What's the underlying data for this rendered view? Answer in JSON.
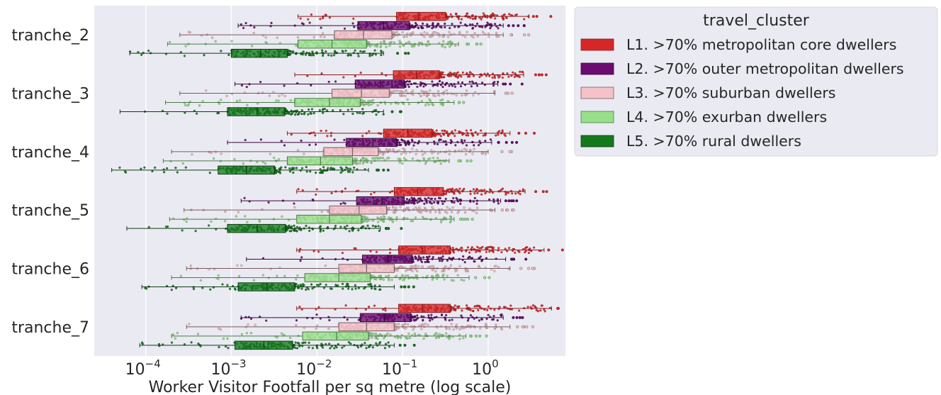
{
  "chart_data": {
    "type": "boxplot",
    "orientation": "horizontal",
    "xscale": "log",
    "xlabel": "Worker Visitor Footfall per sq metre (log scale)",
    "xlim": [
      2.5e-05,
      8.0
    ],
    "xticks": [
      {
        "base": "10",
        "exp": "−4",
        "value": 0.0001
      },
      {
        "base": "10",
        "exp": "−3",
        "value": 0.001
      },
      {
        "base": "10",
        "exp": "−2",
        "value": 0.01
      },
      {
        "base": "10",
        "exp": "−1",
        "value": 0.1
      },
      {
        "base": "10",
        "exp": "0",
        "value": 1
      }
    ],
    "categories": [
      "tranche_2",
      "tranche_3",
      "tranche_4",
      "tranche_5",
      "tranche_6",
      "tranche_7"
    ],
    "grid": true,
    "legend": {
      "title": "travel_cluster",
      "position": "upper right, outside plot"
    },
    "series": [
      {
        "name": "L1. >70% metropolitan core dwellers",
        "color": "#d62728",
        "edge": "#8b1a1a",
        "boxes": [
          {
            "whislo": 0.006,
            "q1": 0.085,
            "med": 0.155,
            "q3": 0.32,
            "whishi": 3.0
          },
          {
            "whislo": 0.0055,
            "q1": 0.078,
            "med": 0.145,
            "q3": 0.27,
            "whishi": 2.6
          },
          {
            "whislo": 0.0045,
            "q1": 0.06,
            "med": 0.115,
            "q3": 0.22,
            "whishi": 1.8
          },
          {
            "whislo": 0.0058,
            "q1": 0.08,
            "med": 0.15,
            "q3": 0.3,
            "whishi": 2.7
          },
          {
            "whislo": 0.0058,
            "q1": 0.09,
            "med": 0.17,
            "q3": 0.36,
            "whishi": 4.5
          },
          {
            "whislo": 0.0058,
            "q1": 0.09,
            "med": 0.17,
            "q3": 0.36,
            "whishi": 5.5
          }
        ]
      },
      {
        "name": "L2. >70% outer metropolitan dwellers",
        "color": "#6a0d6e",
        "edge": "#3a063c",
        "boxes": [
          {
            "whislo": 0.0012,
            "q1": 0.03,
            "med": 0.06,
            "q3": 0.12,
            "whishi": 1.5
          },
          {
            "whislo": 0.0011,
            "q1": 0.028,
            "med": 0.055,
            "q3": 0.105,
            "whishi": 1.3
          },
          {
            "whislo": 0.0009,
            "q1": 0.022,
            "med": 0.045,
            "q3": 0.085,
            "whishi": 1.1
          },
          {
            "whislo": 0.0013,
            "q1": 0.029,
            "med": 0.058,
            "q3": 0.105,
            "whishi": 1.4
          },
          {
            "whislo": 0.0015,
            "q1": 0.034,
            "med": 0.068,
            "q3": 0.13,
            "whishi": 1.6
          },
          {
            "whislo": 0.0013,
            "q1": 0.032,
            "med": 0.062,
            "q3": 0.125,
            "whishi": 1.5
          }
        ]
      },
      {
        "name": "L3. >70% suburban dwellers",
        "color": "#f4c2c8",
        "edge": "#7a5a5e",
        "boxes": [
          {
            "whislo": 0.00025,
            "q1": 0.016,
            "med": 0.035,
            "q3": 0.075,
            "whishi": 1.5
          },
          {
            "whislo": 0.00025,
            "q1": 0.015,
            "med": 0.033,
            "q3": 0.07,
            "whishi": 1.2
          },
          {
            "whislo": 0.0002,
            "q1": 0.012,
            "med": 0.026,
            "q3": 0.052,
            "whishi": 1.0
          },
          {
            "whislo": 0.00028,
            "q1": 0.014,
            "med": 0.031,
            "q3": 0.065,
            "whishi": 1.2
          },
          {
            "whislo": 0.0003,
            "q1": 0.018,
            "med": 0.038,
            "q3": 0.08,
            "whishi": 1.8
          },
          {
            "whislo": 0.0003,
            "q1": 0.018,
            "med": 0.038,
            "q3": 0.08,
            "whishi": 1.8
          }
        ]
      },
      {
        "name": "L4. >70% exurban dwellers",
        "color": "#98df8a",
        "edge": "#4a7a45",
        "boxes": [
          {
            "whislo": 0.00018,
            "q1": 0.006,
            "med": 0.015,
            "q3": 0.038,
            "whishi": 0.45
          },
          {
            "whislo": 0.00017,
            "q1": 0.0055,
            "med": 0.014,
            "q3": 0.032,
            "whishi": 0.4
          },
          {
            "whislo": 0.00016,
            "q1": 0.0045,
            "med": 0.011,
            "q3": 0.026,
            "whishi": 0.35
          },
          {
            "whislo": 0.00019,
            "q1": 0.0058,
            "med": 0.014,
            "q3": 0.033,
            "whishi": 0.4
          },
          {
            "whislo": 0.0002,
            "q1": 0.0072,
            "med": 0.018,
            "q3": 0.042,
            "whishi": 0.6
          },
          {
            "whislo": 0.0002,
            "q1": 0.0068,
            "med": 0.017,
            "q3": 0.04,
            "whishi": 0.55
          }
        ]
      },
      {
        "name": "L5. >70% rural dwellers",
        "color": "#157a1e",
        "edge": "#0b3d0f",
        "boxes": [
          {
            "whislo": 6.5e-05,
            "q1": 0.001,
            "med": 0.0022,
            "q3": 0.0045,
            "whishi": 0.06
          },
          {
            "whislo": 5e-05,
            "q1": 0.0009,
            "med": 0.002,
            "q3": 0.0042,
            "whishi": 0.06
          },
          {
            "whislo": 4e-05,
            "q1": 0.0007,
            "med": 0.0015,
            "q3": 0.0032,
            "whishi": 0.04
          },
          {
            "whislo": 6e-05,
            "q1": 0.0009,
            "med": 0.002,
            "q3": 0.0043,
            "whishi": 0.055
          },
          {
            "whislo": 9e-05,
            "q1": 0.0012,
            "med": 0.0026,
            "q3": 0.0055,
            "whishi": 0.08
          },
          {
            "whislo": 8.5e-05,
            "q1": 0.0011,
            "med": 0.0024,
            "q3": 0.0052,
            "whishi": 0.08
          }
        ]
      }
    ]
  }
}
